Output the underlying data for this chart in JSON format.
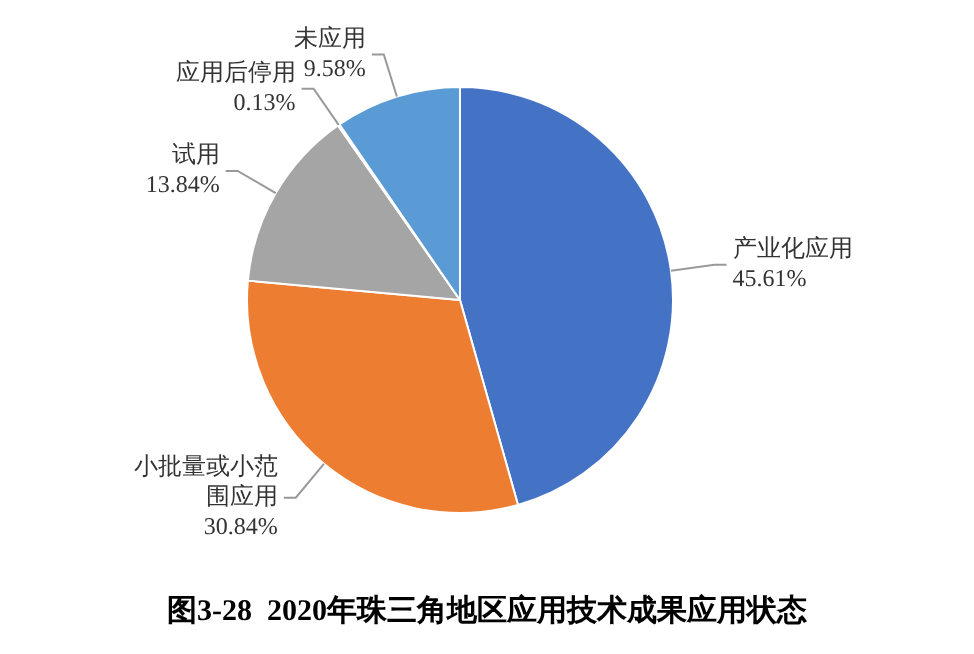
{
  "chart_data": {
    "type": "pie",
    "title": "图3-28  2020年珠三角地区应用技术成果应用状态",
    "categories": [
      "产业化应用",
      "小批量或小范围应用",
      "试用",
      "应用后停用",
      "未应用"
    ],
    "values": [
      45.61,
      30.84,
      13.84,
      0.13,
      9.58
    ],
    "colors": [
      "#4472c4",
      "#ed7d31",
      "#a5a5a5",
      "#ffc000",
      "#5b9bd5"
    ],
    "value_labels": [
      "45.61%",
      "30.84%",
      "13.84%",
      "0.13%",
      "9.58%"
    ],
    "legend": false
  }
}
